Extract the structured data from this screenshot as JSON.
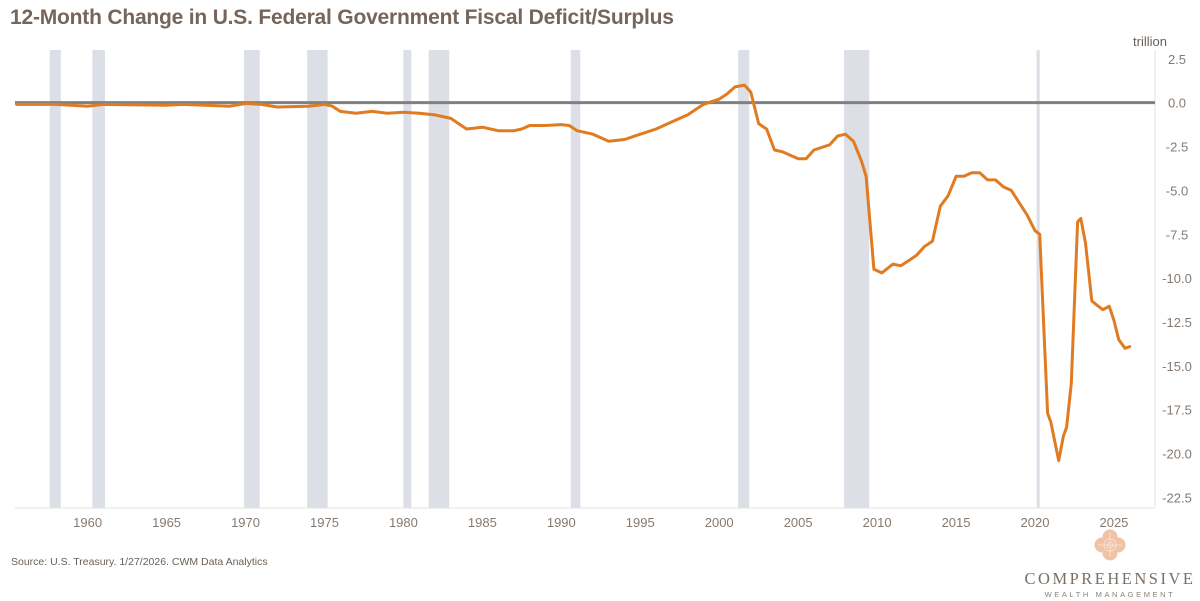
{
  "chart_data": {
    "type": "line",
    "title": "12-Month Change in U.S. Federal Government Fiscal Deficit/Surplus",
    "ylabel": "trillion",
    "xlabel": "",
    "source": "Source: U.S. Treasury. 1/27/2026. CWM Data Analytics",
    "xlim": [
      1955.4,
      2027.6
    ],
    "ylim": [
      -23.1,
      3.0
    ],
    "x_ticks": [
      1960,
      1965,
      1970,
      1975,
      1980,
      1985,
      1990,
      1995,
      2000,
      2005,
      2010,
      2015,
      2020,
      2025
    ],
    "y_ticks": [
      2.5,
      0.0,
      -2.5,
      -5.0,
      -7.5,
      -10.0,
      -12.5,
      -15.0,
      -17.5,
      -20.0,
      -22.5
    ],
    "y_tick_labels": [
      "2.5",
      "0.0",
      "-2.5",
      "-5.0",
      "-7.5",
      "-10.0",
      "-12.5",
      "-15.0",
      "-17.5",
      "-20.0",
      "-22.5"
    ],
    "grid": false,
    "zero_line": true,
    "colors": {
      "line": "#e07b22",
      "zero_line": "#808080",
      "recession": "#dcdfe6",
      "title": "#75655a"
    },
    "recessions": [
      [
        1957.6,
        1958.3
      ],
      [
        1960.3,
        1961.1
      ],
      [
        1969.9,
        1970.9
      ],
      [
        1973.9,
        1975.2
      ],
      [
        1980.0,
        1980.5
      ],
      [
        1981.6,
        1982.9
      ],
      [
        1990.6,
        1991.2
      ],
      [
        2001.2,
        2001.9
      ],
      [
        2007.9,
        2009.5
      ],
      [
        2020.1,
        2020.3
      ]
    ],
    "series": [
      {
        "x": [
          1955.5,
          1958,
          1960,
          1961,
          1965,
          1966,
          1969,
          1970,
          1971,
          1972,
          1974,
          1975,
          1975.5,
          1976,
          1977,
          1978,
          1979,
          1980,
          1981,
          1982,
          1983,
          1984,
          1985,
          1986,
          1987,
          1987.5,
          1988,
          1989,
          1990,
          1990.5,
          1991,
          1992,
          1993,
          1994,
          1995,
          1996,
          1997,
          1998,
          1999,
          2000,
          2000.5,
          2001,
          2001.6,
          2002,
          2002.5,
          2003,
          2003.5,
          2004,
          2005,
          2005.5,
          2006,
          2007,
          2007.5,
          2008,
          2008.5,
          2009,
          2009.3,
          2009.8,
          2010.3,
          2011,
          2011.5,
          2012,
          2012.5,
          2013,
          2013.5,
          2014,
          2014.5,
          2015,
          2015.5,
          2016,
          2016.5,
          2017,
          2017.5,
          2018,
          2018.5,
          2019,
          2019.5,
          2020,
          2020.3,
          2020.8,
          2021,
          2021.5,
          2021.8,
          2022,
          2022.3,
          2022.7,
          2022.9,
          2023.2,
          2023.6,
          2024,
          2024.3,
          2024.7,
          2025,
          2025.3,
          2025.7,
          2026
        ],
        "values": [
          -0.1,
          -0.1,
          -0.2,
          -0.1,
          -0.15,
          -0.1,
          -0.2,
          -0.05,
          -0.1,
          -0.25,
          -0.2,
          -0.1,
          -0.2,
          -0.5,
          -0.6,
          -0.5,
          -0.6,
          -0.55,
          -0.6,
          -0.7,
          -0.9,
          -1.5,
          -1.4,
          -1.6,
          -1.6,
          -1.5,
          -1.3,
          -1.3,
          -1.25,
          -1.3,
          -1.6,
          -1.8,
          -2.2,
          -2.1,
          -1.8,
          -1.5,
          -1.1,
          -0.7,
          -0.1,
          0.2,
          0.5,
          0.9,
          1.0,
          0.6,
          -1.2,
          -1.5,
          -2.7,
          -2.8,
          -3.2,
          -3.2,
          -2.7,
          -2.4,
          -1.9,
          -1.8,
          -2.2,
          -3.3,
          -4.2,
          -9.5,
          -9.7,
          -9.2,
          -9.3,
          -9.0,
          -8.7,
          -8.2,
          -7.9,
          -5.9,
          -5.3,
          -4.2,
          -4.2,
          -4.0,
          -4.0,
          -4.4,
          -4.4,
          -4.8,
          -5.0,
          -5.7,
          -6.4,
          -7.3,
          -7.5,
          -17.7,
          -18.2,
          -20.4,
          -19.0,
          -18.5,
          -16.0,
          -6.8,
          -6.6,
          -8.0,
          -11.3,
          -11.6,
          -11.8,
          -11.6,
          -12.4,
          -13.5,
          -14.0,
          -13.9
        ]
      }
    ]
  },
  "logo": {
    "name": "COMPREHENSIVE",
    "sub": "WEALTH MANAGEMENT"
  }
}
